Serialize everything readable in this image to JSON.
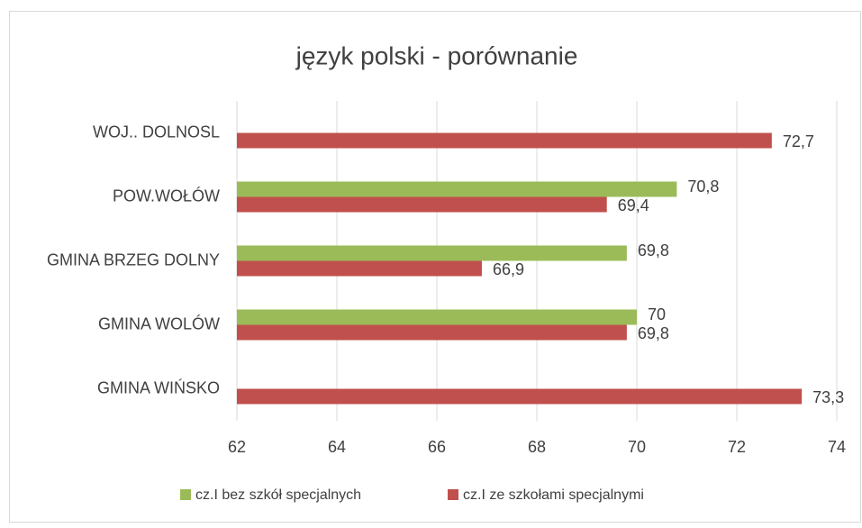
{
  "chart_data": {
    "type": "bar",
    "orientation": "horizontal",
    "title": "język polski - porównanie",
    "categories": [
      "WOJ.. DOLNOSL",
      "POW.WOŁÓW",
      "GMINA BRZEG DOLNY",
      "GMINA WOLÓW",
      "GMINA WIŃSKO"
    ],
    "series": [
      {
        "name": "cz.I bez szkół specjalnych",
        "color": "#9bbb59",
        "values": [
          null,
          70.8,
          69.8,
          70,
          null
        ],
        "value_labels": [
          null,
          "70,8",
          "69,8",
          "70",
          null
        ]
      },
      {
        "name": "cz.I ze szkołami specjalnymi",
        "color": "#c0504d",
        "values": [
          72.7,
          69.4,
          66.9,
          69.8,
          73.3
        ],
        "value_labels": [
          "72,7",
          "69,4",
          "66,9",
          "69,8",
          "73,3"
        ]
      }
    ],
    "xlim": [
      62,
      74
    ],
    "xticks": [
      62,
      64,
      66,
      68,
      70,
      72,
      74
    ],
    "grid": true,
    "legend": "bottom"
  }
}
